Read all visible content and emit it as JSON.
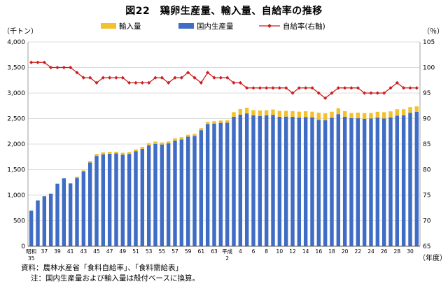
{
  "title": "図22　鶏卵生産量、輸入量、自給率の推移",
  "notes": {
    "source": "資料：農林水産省「食料自給率」、「食料需給表」",
    "note": "注：国内生産量および輸入量は殻付ベースに換算。"
  },
  "chart_data": {
    "type": "bar",
    "stacked": true,
    "title": "図22　鶏卵生産量、輸入量、自給率の推移",
    "left_axis": {
      "unit_label": "（千トン）",
      "ylim": [
        0,
        4000
      ],
      "ticks": [
        "0",
        "500",
        "1,000",
        "1,500",
        "2,000",
        "2,500",
        "3,000",
        "3,500",
        "4,000"
      ]
    },
    "right_axis": {
      "unit_label": "（％）",
      "ylim": [
        65,
        105
      ],
      "ticks": [
        "65",
        "70",
        "75",
        "80",
        "85",
        "90",
        "95",
        "100",
        "105"
      ]
    },
    "x_axis": {
      "unit_label": "（年度）",
      "tick_labels": [
        {
          "index": 0,
          "lines": [
            "昭和",
            "35"
          ]
        },
        {
          "index": 2,
          "lines": [
            "37"
          ]
        },
        {
          "index": 4,
          "lines": [
            "39"
          ]
        },
        {
          "index": 6,
          "lines": [
            "41"
          ]
        },
        {
          "index": 8,
          "lines": [
            "43"
          ]
        },
        {
          "index": 10,
          "lines": [
            "45"
          ]
        },
        {
          "index": 12,
          "lines": [
            "47"
          ]
        },
        {
          "index": 14,
          "lines": [
            "49"
          ]
        },
        {
          "index": 16,
          "lines": [
            "51"
          ]
        },
        {
          "index": 18,
          "lines": [
            "53"
          ]
        },
        {
          "index": 20,
          "lines": [
            "55"
          ]
        },
        {
          "index": 22,
          "lines": [
            "57"
          ]
        },
        {
          "index": 24,
          "lines": [
            "59"
          ]
        },
        {
          "index": 26,
          "lines": [
            "61"
          ]
        },
        {
          "index": 28,
          "lines": [
            "63"
          ]
        },
        {
          "index": 30,
          "lines": [
            "平成",
            "2"
          ]
        },
        {
          "index": 32,
          "lines": [
            "4"
          ]
        },
        {
          "index": 34,
          "lines": [
            "6"
          ]
        },
        {
          "index": 36,
          "lines": [
            "8"
          ]
        },
        {
          "index": 38,
          "lines": [
            "10"
          ]
        },
        {
          "index": 40,
          "lines": [
            "12"
          ]
        },
        {
          "index": 42,
          "lines": [
            "14"
          ]
        },
        {
          "index": 44,
          "lines": [
            "16"
          ]
        },
        {
          "index": 46,
          "lines": [
            "18"
          ]
        },
        {
          "index": 48,
          "lines": [
            "20"
          ]
        },
        {
          "index": 50,
          "lines": [
            "22"
          ]
        },
        {
          "index": 52,
          "lines": [
            "24"
          ]
        },
        {
          "index": 54,
          "lines": [
            "26"
          ]
        },
        {
          "index": 56,
          "lines": [
            "28"
          ]
        },
        {
          "index": 58,
          "lines": [
            "30"
          ]
        }
      ]
    },
    "legend": [
      "輸入量",
      "国内生産量",
      "自給率(右軸)"
    ],
    "colors": {
      "import": "#f2c12e",
      "domestic": "#3f6cc4",
      "rate": "#cc1f1f",
      "grid": "#d0d0d0"
    },
    "series": [
      {
        "name": "国内生産量",
        "axis": "left",
        "values": [
          696,
          897,
          981,
          1030,
          1224,
          1330,
          1230,
          1340,
          1464,
          1639,
          1766,
          1800,
          1811,
          1815,
          1793,
          1807,
          1861,
          1906,
          1977,
          2003,
          1992,
          2016,
          2068,
          2092,
          2145,
          2160,
          2272,
          2394,
          2402,
          2416,
          2420,
          2536,
          2576,
          2601,
          2563,
          2549,
          2564,
          2573,
          2536,
          2539,
          2535,
          2519,
          2529,
          2525,
          2475,
          2469,
          2514,
          2587,
          2535,
          2508,
          2506,
          2495,
          2502,
          2519,
          2501,
          2521,
          2558,
          2562,
          2614,
          2630
        ]
      },
      {
        "name": "輸入量",
        "axis": "left",
        "values": [
          0,
          0,
          0,
          0,
          0,
          0,
          0,
          21,
          24,
          29,
          42,
          40,
          38,
          36,
          38,
          40,
          36,
          40,
          42,
          46,
          40,
          36,
          46,
          42,
          38,
          40,
          40,
          42,
          46,
          46,
          46,
          90,
          110,
          112,
          102,
          110,
          100,
          104,
          114,
          112,
          110,
          116,
          114,
          110,
          140,
          134,
          120,
          116,
          110,
          100,
          110,
          112,
          106,
          114,
          124,
          120,
          124,
          120,
          110,
          110
        ]
      },
      {
        "name": "自給率(右軸)",
        "axis": "right",
        "values": [
          101,
          101,
          101,
          100,
          100,
          100,
          100,
          99,
          98,
          98,
          97,
          98,
          98,
          98,
          98,
          97,
          97,
          97,
          97,
          98,
          98,
          97,
          98,
          98,
          99,
          98,
          97,
          99,
          98,
          98,
          98,
          97,
          97,
          96,
          96,
          96,
          96,
          96,
          96,
          96,
          95,
          96,
          96,
          96,
          95,
          94,
          95,
          96,
          96,
          96,
          96,
          95,
          95,
          95,
          95,
          96,
          97,
          96,
          96,
          96
        ]
      }
    ]
  }
}
